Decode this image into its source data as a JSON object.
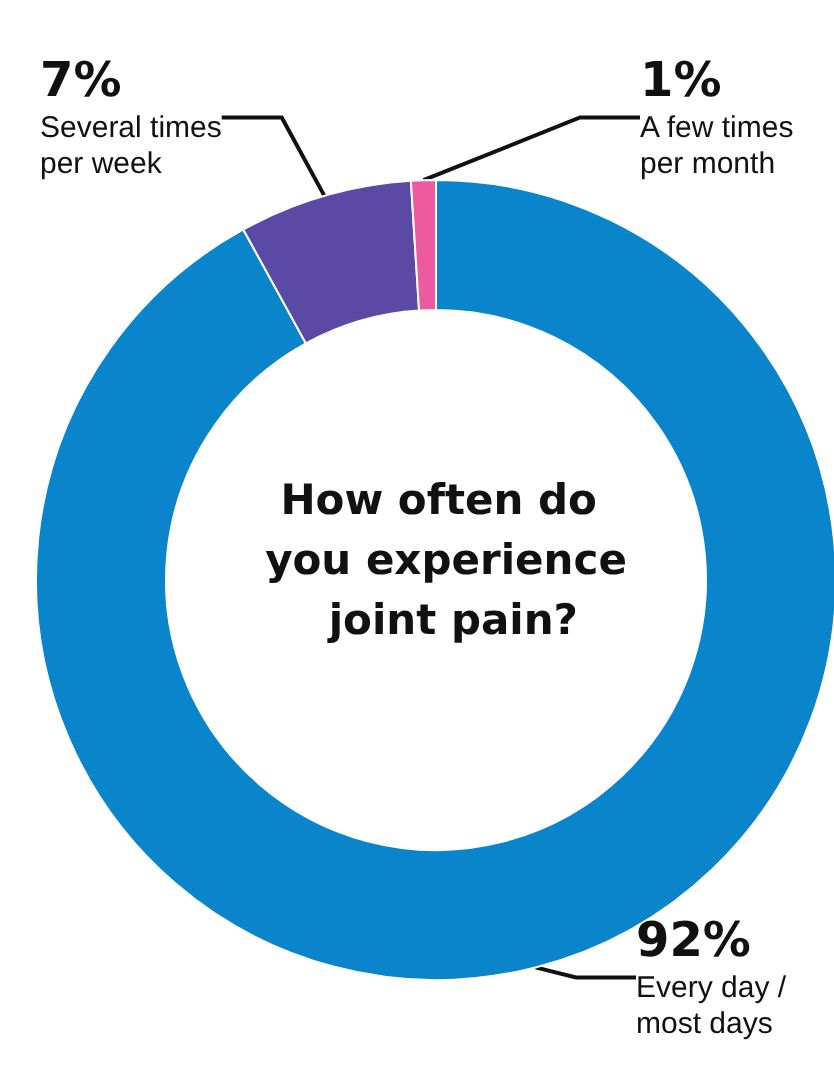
{
  "chart_data": {
    "type": "donut",
    "title": "How often do you experience joint pain?",
    "categories": [
      "Every day / most days",
      "Several times per week",
      "A few times per month"
    ],
    "values": [
      92,
      7,
      1
    ],
    "value_labels": [
      "92%",
      "7%",
      "1%"
    ],
    "colors": [
      "#0a85cc",
      "#5a4aa6",
      "#ec5aa0"
    ],
    "legend": false
  }
}
